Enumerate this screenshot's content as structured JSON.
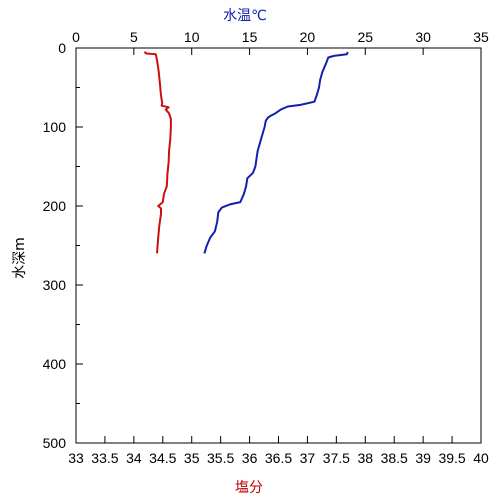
{
  "chart_data": {
    "type": "line",
    "axes": {
      "top": {
        "label": "水温℃",
        "range": [
          0,
          35
        ],
        "ticks": [
          0,
          5,
          10,
          15,
          20,
          25,
          30,
          35
        ],
        "color": "#1020b0"
      },
      "bottom": {
        "label": "塩分",
        "range": [
          33,
          40
        ],
        "ticks": [
          "33",
          "33.5",
          "34",
          "34.5",
          "35",
          "35.5",
          "36",
          "36.5",
          "37",
          "37.5",
          "38",
          "38.5",
          "39",
          "39.5",
          "40"
        ],
        "color": "#c00000"
      },
      "left": {
        "label": "水深m",
        "range": [
          0,
          500
        ],
        "ticks": [
          0,
          100,
          200,
          300,
          400,
          500
        ],
        "inverted": true
      }
    },
    "grid": false,
    "series": [
      {
        "axis_x": "top",
        "color": "#1020b0",
        "points": [
          [
            23.5,
            5
          ],
          [
            23.4,
            8
          ],
          [
            22.3,
            10
          ],
          [
            21.8,
            12
          ],
          [
            21.6,
            20
          ],
          [
            21.3,
            30
          ],
          [
            21.1,
            40
          ],
          [
            21.0,
            50
          ],
          [
            20.8,
            60
          ],
          [
            20.6,
            68
          ],
          [
            19.4,
            72
          ],
          [
            18.3,
            74
          ],
          [
            17.7,
            78
          ],
          [
            17.2,
            83
          ],
          [
            16.8,
            86
          ],
          [
            16.6,
            88
          ],
          [
            16.4,
            92
          ],
          [
            16.3,
            100
          ],
          [
            16.1,
            110
          ],
          [
            15.9,
            120
          ],
          [
            15.7,
            130
          ],
          [
            15.6,
            140
          ],
          [
            15.5,
            150
          ],
          [
            15.3,
            158
          ],
          [
            14.8,
            165
          ],
          [
            14.7,
            175
          ],
          [
            14.5,
            185
          ],
          [
            14.2,
            195
          ],
          [
            13.3,
            198
          ],
          [
            12.6,
            202
          ],
          [
            12.3,
            208
          ],
          [
            12.2,
            220
          ],
          [
            12.0,
            232
          ],
          [
            11.6,
            240
          ],
          [
            11.3,
            250
          ],
          [
            11.1,
            260
          ]
        ]
      },
      {
        "axis_x": "bottom",
        "color": "#cc1010",
        "points": [
          [
            34.18,
            5
          ],
          [
            34.22,
            7
          ],
          [
            34.38,
            8
          ],
          [
            34.4,
            15
          ],
          [
            34.43,
            30
          ],
          [
            34.45,
            45
          ],
          [
            34.47,
            60
          ],
          [
            34.49,
            70
          ],
          [
            34.48,
            73
          ],
          [
            34.6,
            75
          ],
          [
            34.55,
            78
          ],
          [
            34.6,
            82
          ],
          [
            34.62,
            85
          ],
          [
            34.64,
            90
          ],
          [
            34.64,
            100
          ],
          [
            34.63,
            115
          ],
          [
            34.61,
            130
          ],
          [
            34.6,
            145
          ],
          [
            34.58,
            160
          ],
          [
            34.57,
            175
          ],
          [
            34.52,
            185
          ],
          [
            34.5,
            195
          ],
          [
            34.42,
            200
          ],
          [
            34.47,
            203
          ],
          [
            34.47,
            210
          ],
          [
            34.44,
            225
          ],
          [
            34.42,
            240
          ],
          [
            34.41,
            250
          ],
          [
            34.4,
            260
          ]
        ]
      }
    ]
  }
}
